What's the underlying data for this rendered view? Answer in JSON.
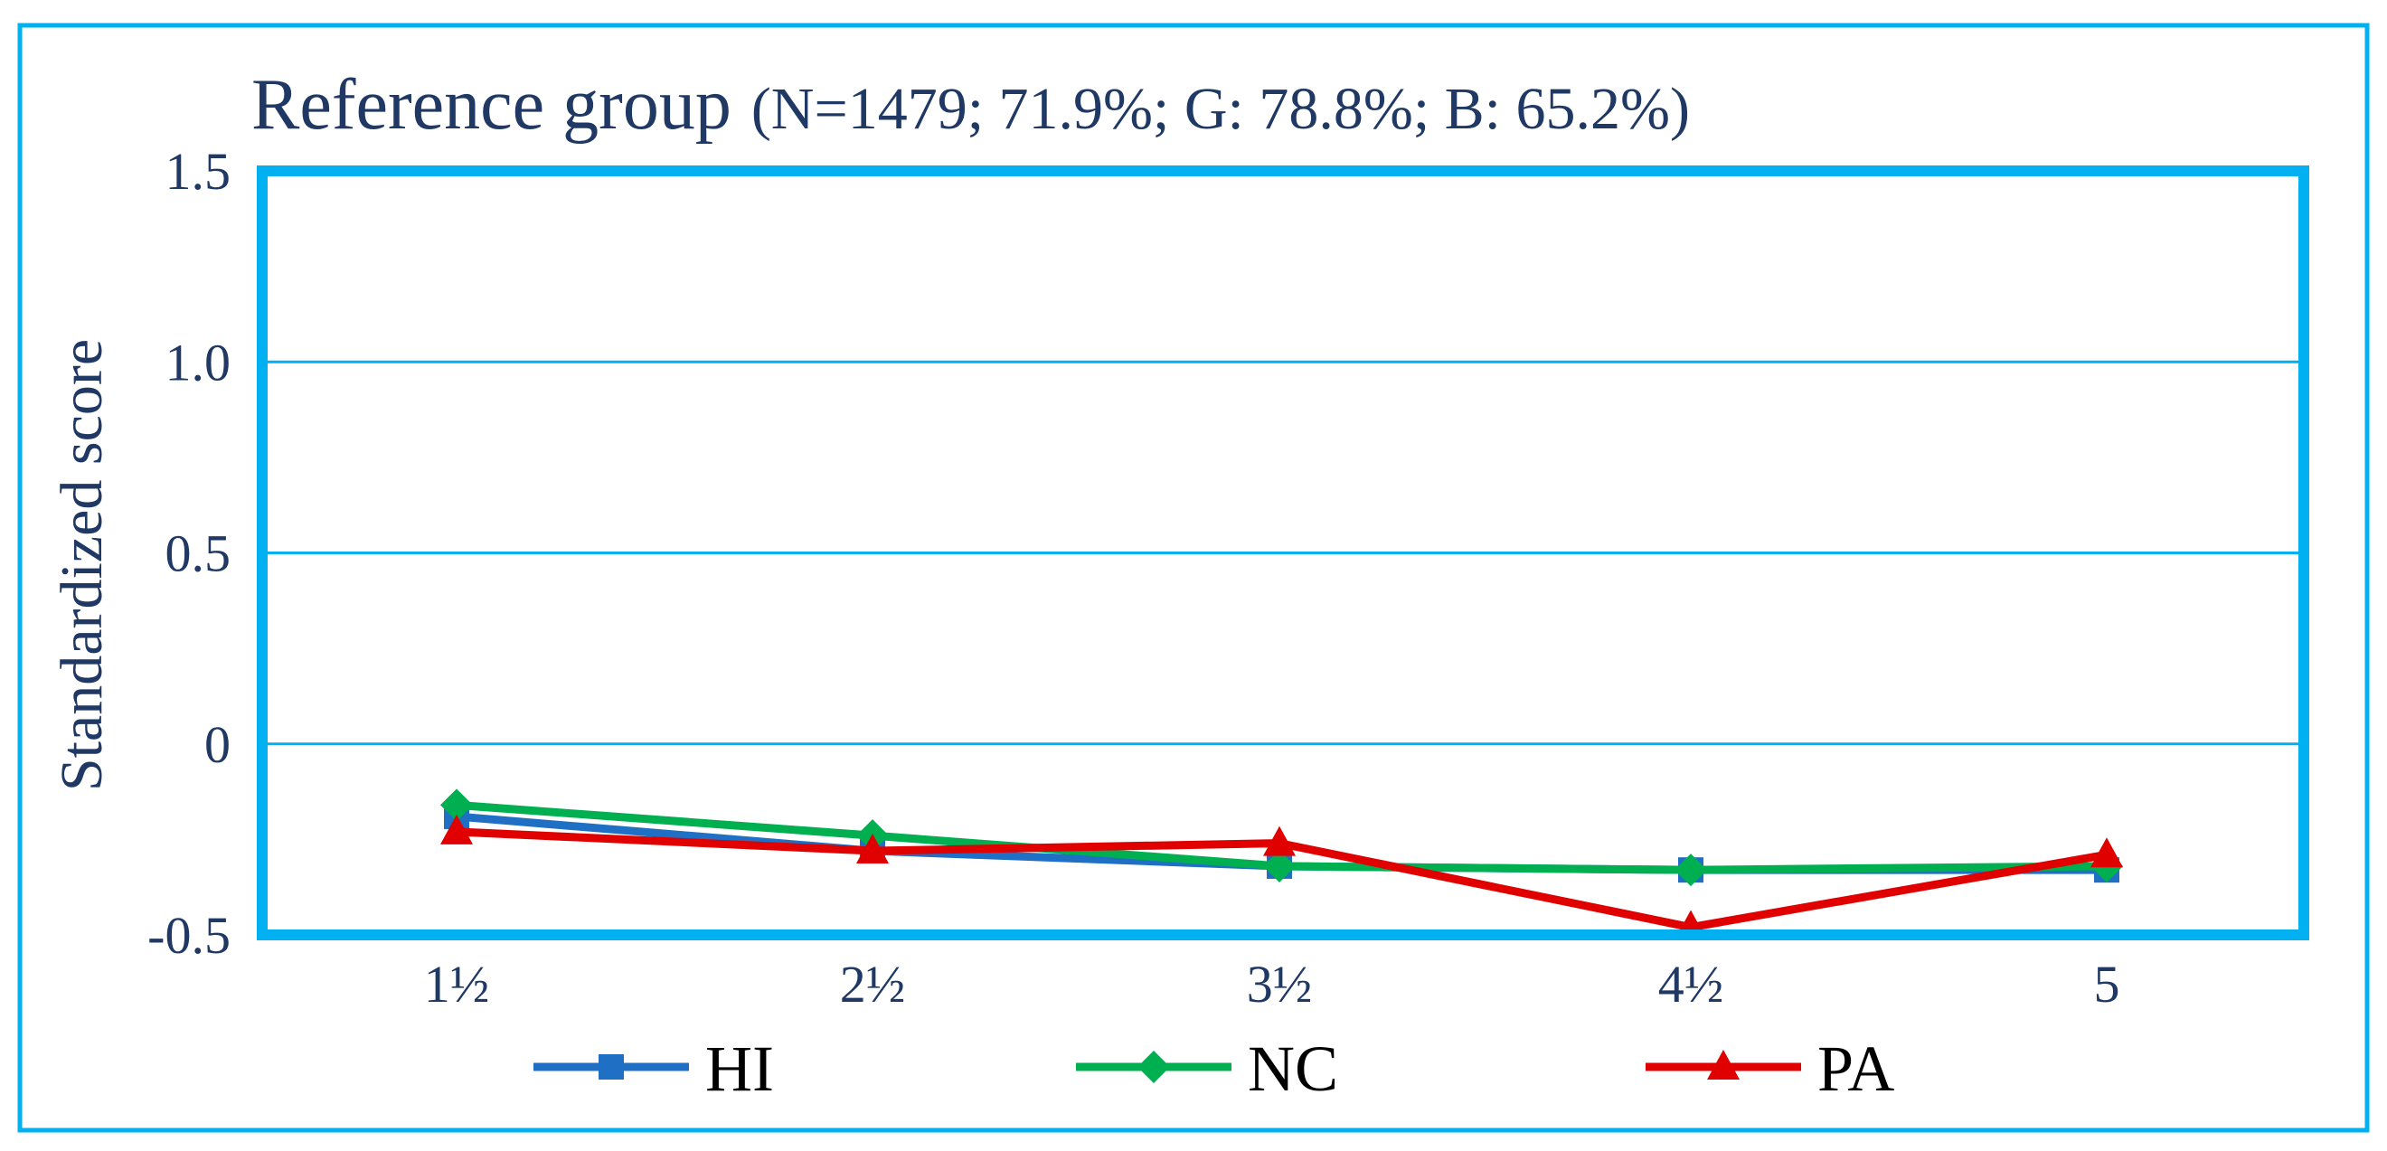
{
  "chart_data": {
    "type": "line",
    "title": "Reference group",
    "subtitle": "(N=1479; 71.9%; G: 78.8%; B: 65.2%)",
    "ylabel": "Standardized score",
    "xlabel": "",
    "categories": [
      "1½",
      "2½",
      "3½",
      "4½",
      "5"
    ],
    "ylim": [
      -0.5,
      1.5
    ],
    "yticks": [
      -0.5,
      0,
      0.5,
      1.0,
      1.5
    ],
    "ytick_labels": [
      "-0.5",
      "0",
      "0.5",
      "1.0",
      "1.5"
    ],
    "grid": true,
    "legend_position": "bottom",
    "series": [
      {
        "name": "HI",
        "marker": "square",
        "color": "#1f6fc4",
        "values": [
          -0.19,
          -0.28,
          -0.32,
          -0.33,
          -0.33
        ]
      },
      {
        "name": "NC",
        "marker": "diamond",
        "color": "#00b050",
        "values": [
          -0.16,
          -0.24,
          -0.32,
          -0.33,
          -0.32
        ]
      },
      {
        "name": "PA",
        "marker": "triangle",
        "color": "#e00000",
        "values": [
          -0.23,
          -0.28,
          -0.26,
          -0.48,
          -0.29
        ]
      }
    ],
    "frame_color": "#00b0f0",
    "grid_color": "#00b0f0"
  }
}
